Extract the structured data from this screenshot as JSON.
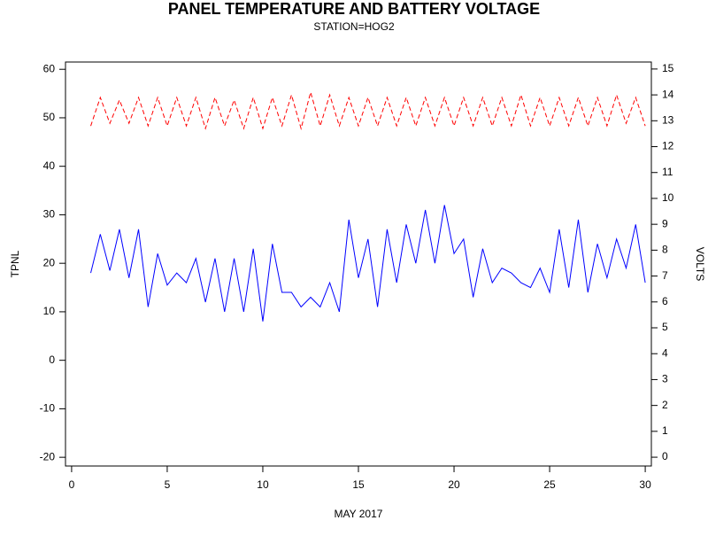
{
  "chart_data": {
    "type": "line",
    "title": "PANEL TEMPERATURE AND BATTERY VOLTAGE",
    "subtitle": "STATION=HOG2",
    "xlabel": "MAY 2017",
    "ylabel": "TPNL",
    "y2label": "VOLTS",
    "x": [
      1,
      1.5,
      2,
      2.5,
      3,
      3.5,
      4,
      4.5,
      5,
      5.5,
      6,
      6.5,
      7,
      7.5,
      8,
      8.5,
      9,
      9.5,
      10,
      10.5,
      11,
      11.5,
      12,
      12.5,
      13,
      13.5,
      14,
      14.5,
      15,
      15.5,
      16,
      16.5,
      17,
      17.5,
      18,
      18.5,
      19,
      19.5,
      20,
      20.5,
      21,
      21.5,
      22,
      22.5,
      23,
      23.5,
      24,
      24.5,
      25,
      25.5,
      26,
      26.5,
      27,
      27.5,
      28,
      28.5,
      29,
      29.5,
      30
    ],
    "series": [
      {
        "color": "#0000ff",
        "dash": false,
        "values": [
          18,
          26,
          18.5,
          27,
          17,
          27,
          11,
          22,
          15.5,
          18,
          16,
          21,
          12,
          21,
          10,
          21,
          10,
          23,
          8,
          24,
          14,
          14,
          11,
          13,
          11,
          16,
          10,
          29,
          17,
          25,
          11,
          27,
          16,
          28,
          20,
          31,
          20,
          32,
          22,
          25,
          13,
          23,
          16,
          19,
          18,
          16,
          15,
          19,
          14,
          27,
          15,
          29,
          14,
          24,
          17,
          25,
          19,
          28,
          16
        ]
      },
      {
        "color": "#ff0000",
        "dash": true,
        "axis": "y2",
        "values": [
          12.8,
          13.9,
          12.9,
          13.8,
          12.9,
          13.9,
          12.8,
          13.9,
          12.8,
          13.9,
          12.8,
          13.9,
          12.7,
          13.9,
          12.8,
          13.8,
          12.7,
          13.9,
          12.7,
          13.9,
          12.8,
          14.0,
          12.7,
          14.1,
          12.8,
          14.0,
          12.8,
          13.9,
          12.8,
          13.9,
          12.8,
          13.9,
          12.8,
          13.9,
          12.8,
          13.9,
          12.8,
          13.9,
          12.8,
          13.9,
          12.8,
          13.9,
          12.8,
          13.9,
          12.8,
          14.0,
          12.8,
          13.9,
          12.8,
          13.9,
          12.8,
          13.9,
          12.8,
          13.9,
          12.8,
          14.0,
          12.9,
          13.9,
          12.8
        ]
      }
    ],
    "xlim": [
      -0.32,
      30.32
    ],
    "xticks": [
      0,
      5,
      10,
      15,
      20,
      25,
      30
    ],
    "ylim": [
      -21.8,
      61.5
    ],
    "yticks": [
      -20,
      -10,
      0,
      10,
      20,
      30,
      40,
      50,
      60
    ],
    "y2lim": [
      -0.34,
      15.27
    ],
    "y2ticks": [
      0,
      1,
      2,
      3,
      4,
      5,
      6,
      7,
      8,
      9,
      10,
      11,
      12,
      13,
      14,
      15
    ]
  }
}
